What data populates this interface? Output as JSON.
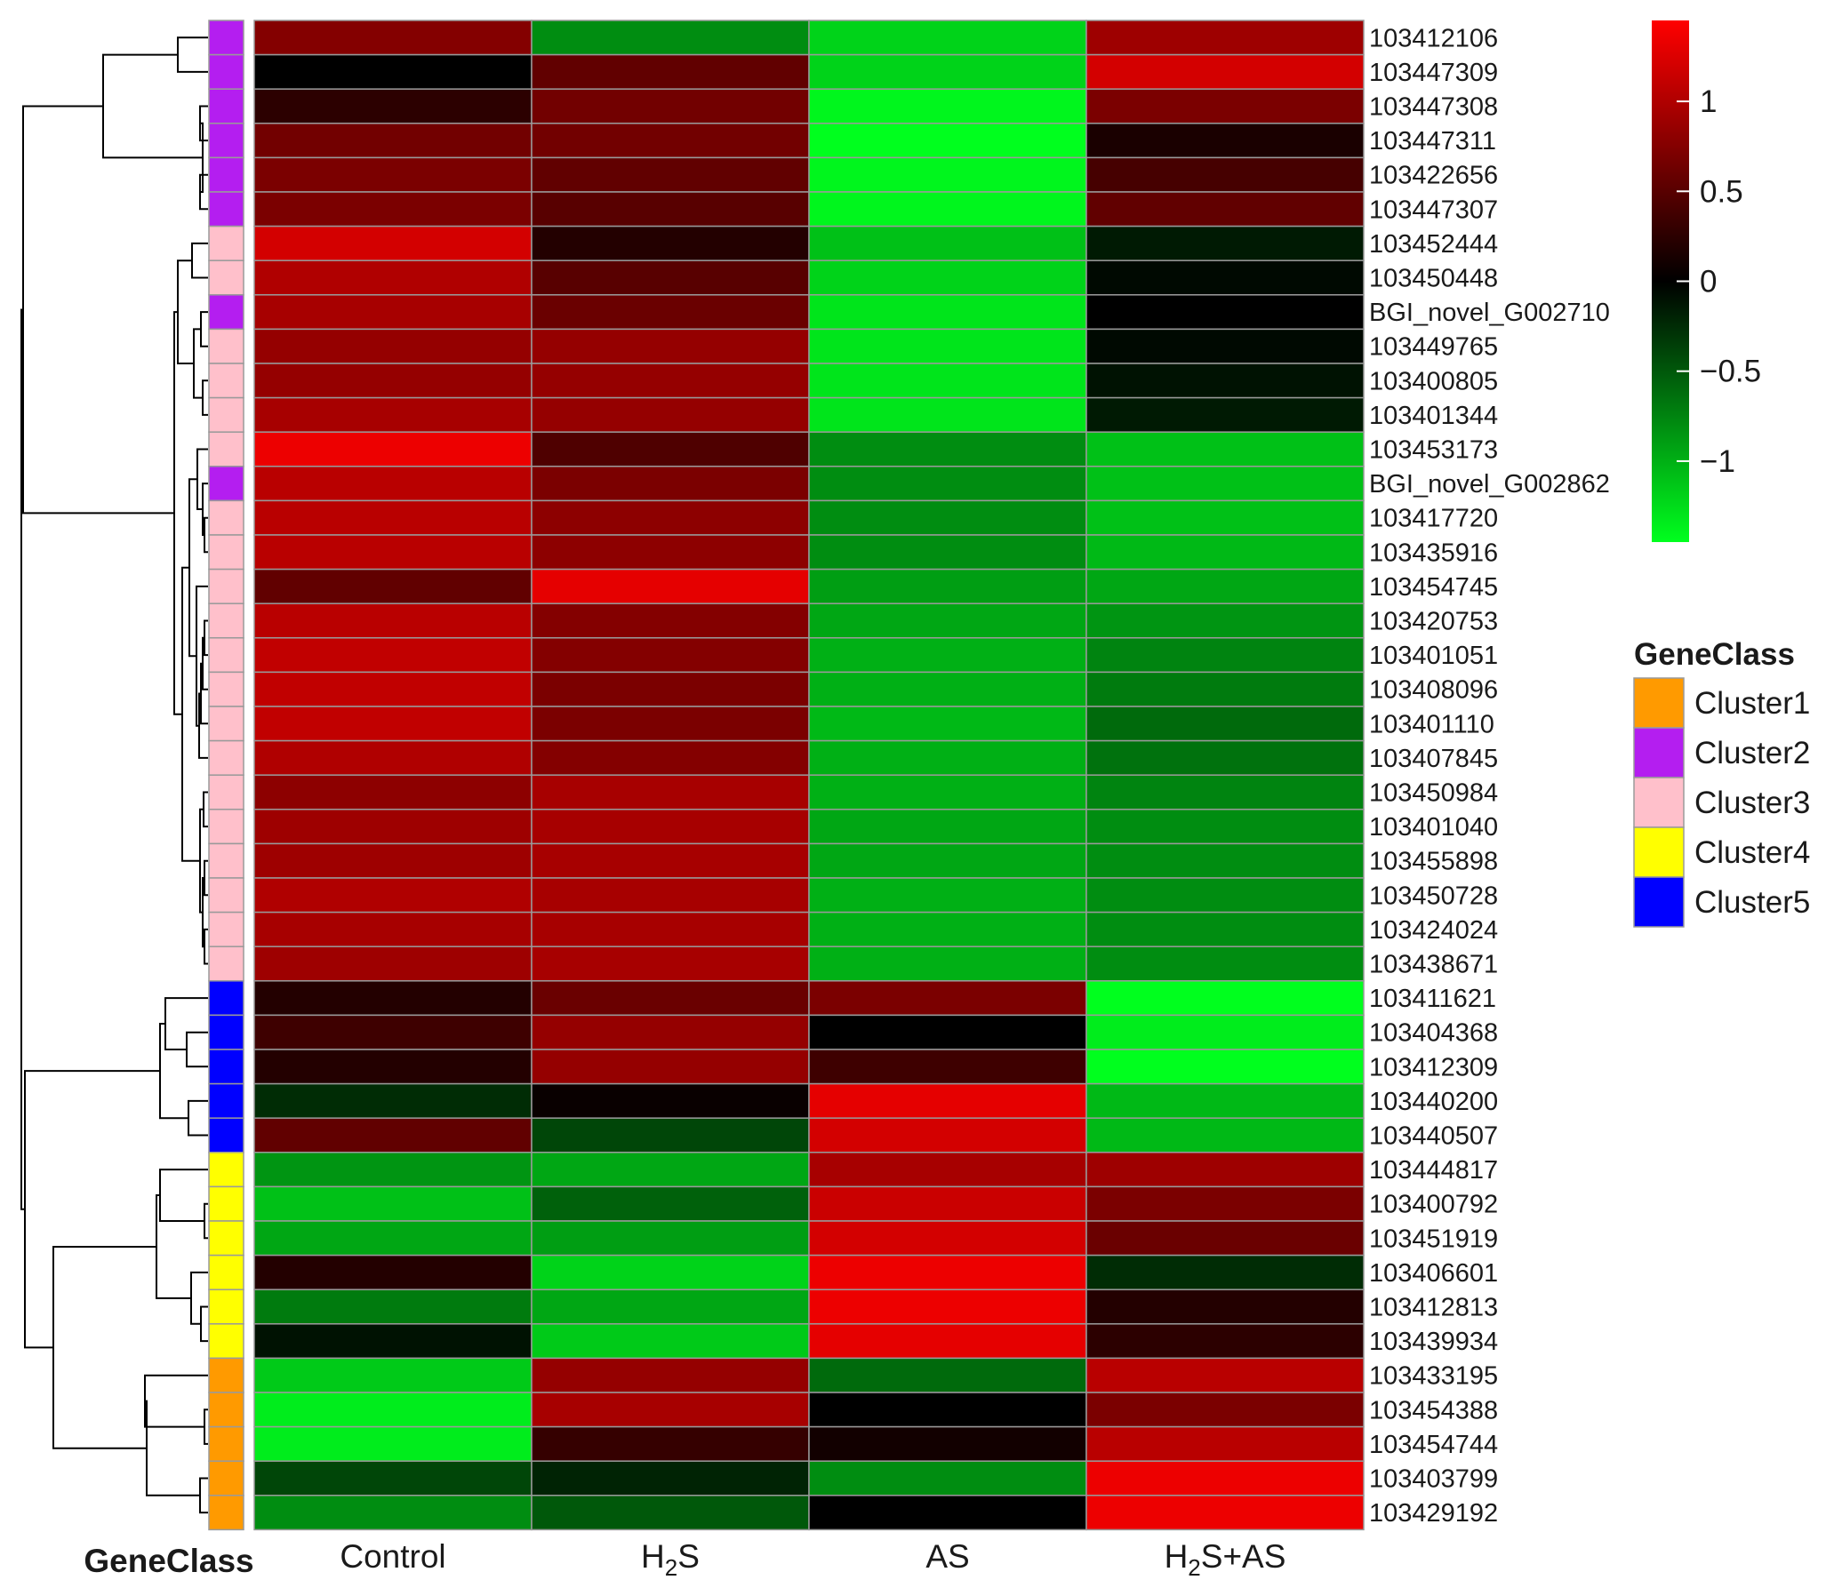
{
  "chart_data": {
    "type": "heatmap",
    "columns": [
      "Control",
      "H2S",
      "AS",
      "H2S+AS"
    ],
    "rows": [
      {
        "gene": "103412106",
        "cluster": "Cluster2",
        "values": [
          0.75,
          -0.8,
          -1.2,
          0.9
        ]
      },
      {
        "gene": "103447309",
        "cluster": "Cluster2",
        "values": [
          0.0,
          0.55,
          -1.2,
          1.2
        ]
      },
      {
        "gene": "103447308",
        "cluster": "Cluster2",
        "values": [
          0.25,
          0.65,
          -1.4,
          0.7
        ]
      },
      {
        "gene": "103447311",
        "cluster": "Cluster2",
        "values": [
          0.65,
          0.65,
          -1.45,
          0.15
        ]
      },
      {
        "gene": "103422656",
        "cluster": "Cluster2",
        "values": [
          0.7,
          0.55,
          -1.4,
          0.4
        ]
      },
      {
        "gene": "103447307",
        "cluster": "Cluster2",
        "values": [
          0.7,
          0.5,
          -1.4,
          0.55
        ]
      },
      {
        "gene": "103452444",
        "cluster": "Cluster3",
        "values": [
          1.2,
          0.2,
          -1.1,
          -0.15
        ]
      },
      {
        "gene": "103450448",
        "cluster": "Cluster3",
        "values": [
          1.0,
          0.5,
          -1.2,
          -0.05
        ]
      },
      {
        "gene": "BGI_novel_G002710",
        "cluster": "Cluster2",
        "values": [
          0.95,
          0.6,
          -1.3,
          0.0
        ]
      },
      {
        "gene": "103449765",
        "cluster": "Cluster3",
        "values": [
          0.85,
          0.85,
          -1.3,
          -0.05
        ]
      },
      {
        "gene": "103400805",
        "cluster": "Cluster3",
        "values": [
          0.85,
          0.85,
          -1.3,
          -0.1
        ]
      },
      {
        "gene": "103401344",
        "cluster": "Cluster3",
        "values": [
          0.95,
          0.85,
          -1.3,
          -0.15
        ]
      },
      {
        "gene": "103453173",
        "cluster": "Cluster3",
        "values": [
          1.35,
          0.45,
          -0.8,
          -1.1
        ]
      },
      {
        "gene": "BGI_novel_G002862",
        "cluster": "Cluster2",
        "values": [
          1.05,
          0.7,
          -0.8,
          -1.1
        ]
      },
      {
        "gene": "103417720",
        "cluster": "Cluster3",
        "values": [
          1.05,
          0.8,
          -0.8,
          -1.1
        ]
      },
      {
        "gene": "103435916",
        "cluster": "Cluster3",
        "values": [
          1.05,
          0.8,
          -0.8,
          -1.05
        ]
      },
      {
        "gene": "103454745",
        "cluster": "Cluster3",
        "values": [
          0.55,
          1.3,
          -0.9,
          -0.95
        ]
      },
      {
        "gene": "103420753",
        "cluster": "Cluster3",
        "values": [
          1.05,
          0.75,
          -0.95,
          -0.85
        ]
      },
      {
        "gene": "103401051",
        "cluster": "Cluster3",
        "values": [
          1.1,
          0.75,
          -1.0,
          -0.75
        ]
      },
      {
        "gene": "103408096",
        "cluster": "Cluster3",
        "values": [
          1.1,
          0.7,
          -1.0,
          -0.7
        ]
      },
      {
        "gene": "103401110",
        "cluster": "Cluster3",
        "values": [
          1.1,
          0.7,
          -1.05,
          -0.6
        ]
      },
      {
        "gene": "103407845",
        "cluster": "Cluster3",
        "values": [
          1.0,
          0.75,
          -1.0,
          -0.65
        ]
      },
      {
        "gene": "103450984",
        "cluster": "Cluster3",
        "values": [
          0.8,
          0.95,
          -1.0,
          -0.75
        ]
      },
      {
        "gene": "103401040",
        "cluster": "Cluster3",
        "values": [
          0.9,
          0.95,
          -0.95,
          -0.8
        ]
      },
      {
        "gene": "103455898",
        "cluster": "Cluster3",
        "values": [
          0.9,
          0.95,
          -0.95,
          -0.8
        ]
      },
      {
        "gene": "103450728",
        "cluster": "Cluster3",
        "values": [
          1.0,
          0.95,
          -1.0,
          -0.8
        ]
      },
      {
        "gene": "103424024",
        "cluster": "Cluster3",
        "values": [
          0.95,
          0.95,
          -1.0,
          -0.8
        ]
      },
      {
        "gene": "103438671",
        "cluster": "Cluster3",
        "values": [
          0.9,
          0.95,
          -1.0,
          -0.8
        ]
      },
      {
        "gene": "103411621",
        "cluster": "Cluster5",
        "values": [
          0.2,
          0.6,
          0.7,
          -1.45
        ]
      },
      {
        "gene": "103404368",
        "cluster": "Cluster5",
        "values": [
          0.35,
          0.85,
          0.0,
          -1.35
        ]
      },
      {
        "gene": "103412309",
        "cluster": "Cluster5",
        "values": [
          0.2,
          0.85,
          0.35,
          -1.45
        ]
      },
      {
        "gene": "103440200",
        "cluster": "Cluster5",
        "values": [
          -0.25,
          0.05,
          1.3,
          -1.05
        ]
      },
      {
        "gene": "103440507",
        "cluster": "Cluster5",
        "values": [
          0.55,
          -0.4,
          1.2,
          -1.05
        ]
      },
      {
        "gene": "103444817",
        "cluster": "Cluster4",
        "values": [
          -0.85,
          -0.95,
          0.95,
          0.9
        ]
      },
      {
        "gene": "103400792",
        "cluster": "Cluster4",
        "values": [
          -1.1,
          -0.55,
          1.15,
          0.7
        ]
      },
      {
        "gene": "103451919",
        "cluster": "Cluster4",
        "values": [
          -0.95,
          -0.9,
          1.2,
          0.6
        ]
      },
      {
        "gene": "103406601",
        "cluster": "Cluster4",
        "values": [
          0.2,
          -1.2,
          1.35,
          -0.25
        ]
      },
      {
        "gene": "103412813",
        "cluster": "Cluster4",
        "values": [
          -0.7,
          -0.95,
          1.35,
          0.2
        ]
      },
      {
        "gene": "103439934",
        "cluster": "Cluster4",
        "values": [
          -0.1,
          -1.15,
          1.3,
          0.25
        ]
      },
      {
        "gene": "103433195",
        "cluster": "Cluster1",
        "values": [
          -1.15,
          0.85,
          -0.6,
          1.05
        ]
      },
      {
        "gene": "103454388",
        "cluster": "Cluster1",
        "values": [
          -1.35,
          0.95,
          0.0,
          0.7
        ]
      },
      {
        "gene": "103454744",
        "cluster": "Cluster1",
        "values": [
          -1.35,
          0.3,
          0.1,
          1.05
        ]
      },
      {
        "gene": "103403799",
        "cluster": "Cluster1",
        "values": [
          -0.4,
          -0.2,
          -0.8,
          1.35
        ]
      },
      {
        "gene": "103429192",
        "cluster": "Cluster1",
        "values": [
          -0.8,
          -0.5,
          0.0,
          1.35
        ]
      }
    ],
    "color_scale": {
      "min": -1.45,
      "max": 1.45,
      "low_color": "#00ff1e",
      "mid_color": "#000000",
      "high_color": "#ff0000",
      "ticks": [
        1,
        0.5,
        0,
        -0.5,
        -1
      ],
      "tick_labels": [
        "1",
        "0.5",
        "0",
        "−0.5",
        "−1"
      ]
    },
    "row_annotation_title": "GeneClass",
    "legend": {
      "title": "GeneClass",
      "items": [
        {
          "label": "Cluster1",
          "color": "#ff9a00"
        },
        {
          "label": "Cluster2",
          "color": "#b41ef0"
        },
        {
          "label": "Cluster3",
          "color": "#ffc0cb"
        },
        {
          "label": "Cluster4",
          "color": "#ffff00"
        },
        {
          "label": "Cluster5",
          "color": "#0000ff"
        }
      ]
    },
    "column_labels": [
      {
        "main": "Control",
        "sub": "",
        "tail": ""
      },
      {
        "main": "H",
        "sub": "2",
        "tail": "S"
      },
      {
        "main": "AS",
        "sub": "",
        "tail": ""
      },
      {
        "main": "H",
        "sub": "2",
        "tail": "S+AS"
      }
    ]
  }
}
